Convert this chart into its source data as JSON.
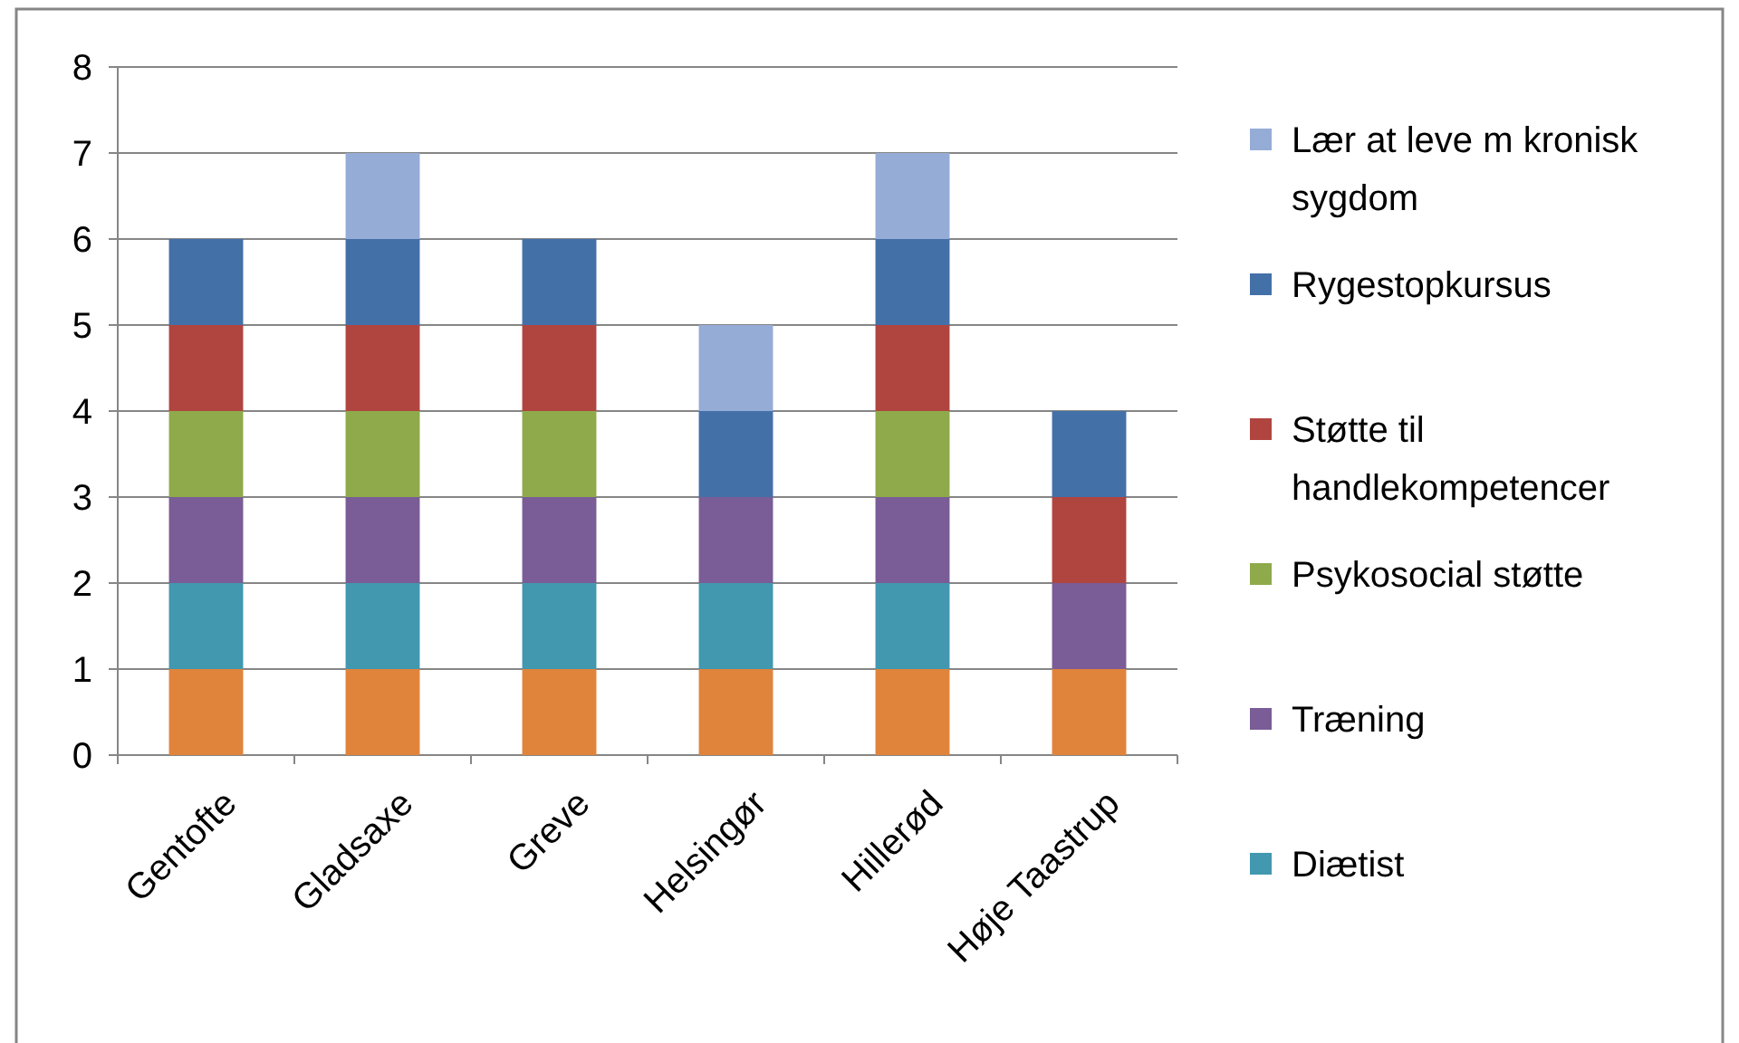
{
  "chart_data": {
    "type": "bar",
    "stacked": true,
    "categories": [
      "Gentofte",
      "Gladsaxe",
      "Greve",
      "Helsingør",
      "Hillerød",
      "Høje Taastrup"
    ],
    "series": [
      {
        "color": "#e0843c",
        "values": [
          1,
          1,
          1,
          1,
          1,
          1
        ]
      },
      {
        "name": "Diætist",
        "color": "#4198af",
        "values": [
          1,
          1,
          1,
          1,
          1,
          null
        ]
      },
      {
        "name": "Træning",
        "color": "#7a5c96",
        "values": [
          1,
          1,
          1,
          1,
          1,
          1
        ]
      },
      {
        "name": "Psykosocial støtte",
        "color": "#8eaa4a",
        "values": [
          1,
          1,
          1,
          null,
          1,
          null
        ]
      },
      {
        "name": "Støtte til handlekompetencer",
        "color": "#b04540",
        "values": [
          1,
          1,
          1,
          null,
          1,
          1
        ]
      },
      {
        "name": "Rygestopkursus",
        "color": "#4470a8",
        "values": [
          1,
          1,
          1,
          1,
          1,
          1
        ]
      },
      {
        "name": "Lær at leve m kronisk sygdom",
        "color": "#95acd6",
        "values": [
          null,
          1,
          null,
          1,
          1,
          null
        ]
      }
    ],
    "ylim": [
      0,
      8
    ],
    "yticks": [
      0,
      1,
      2,
      3,
      4,
      5,
      6,
      7,
      8
    ],
    "grid": "y",
    "legend": "right"
  }
}
